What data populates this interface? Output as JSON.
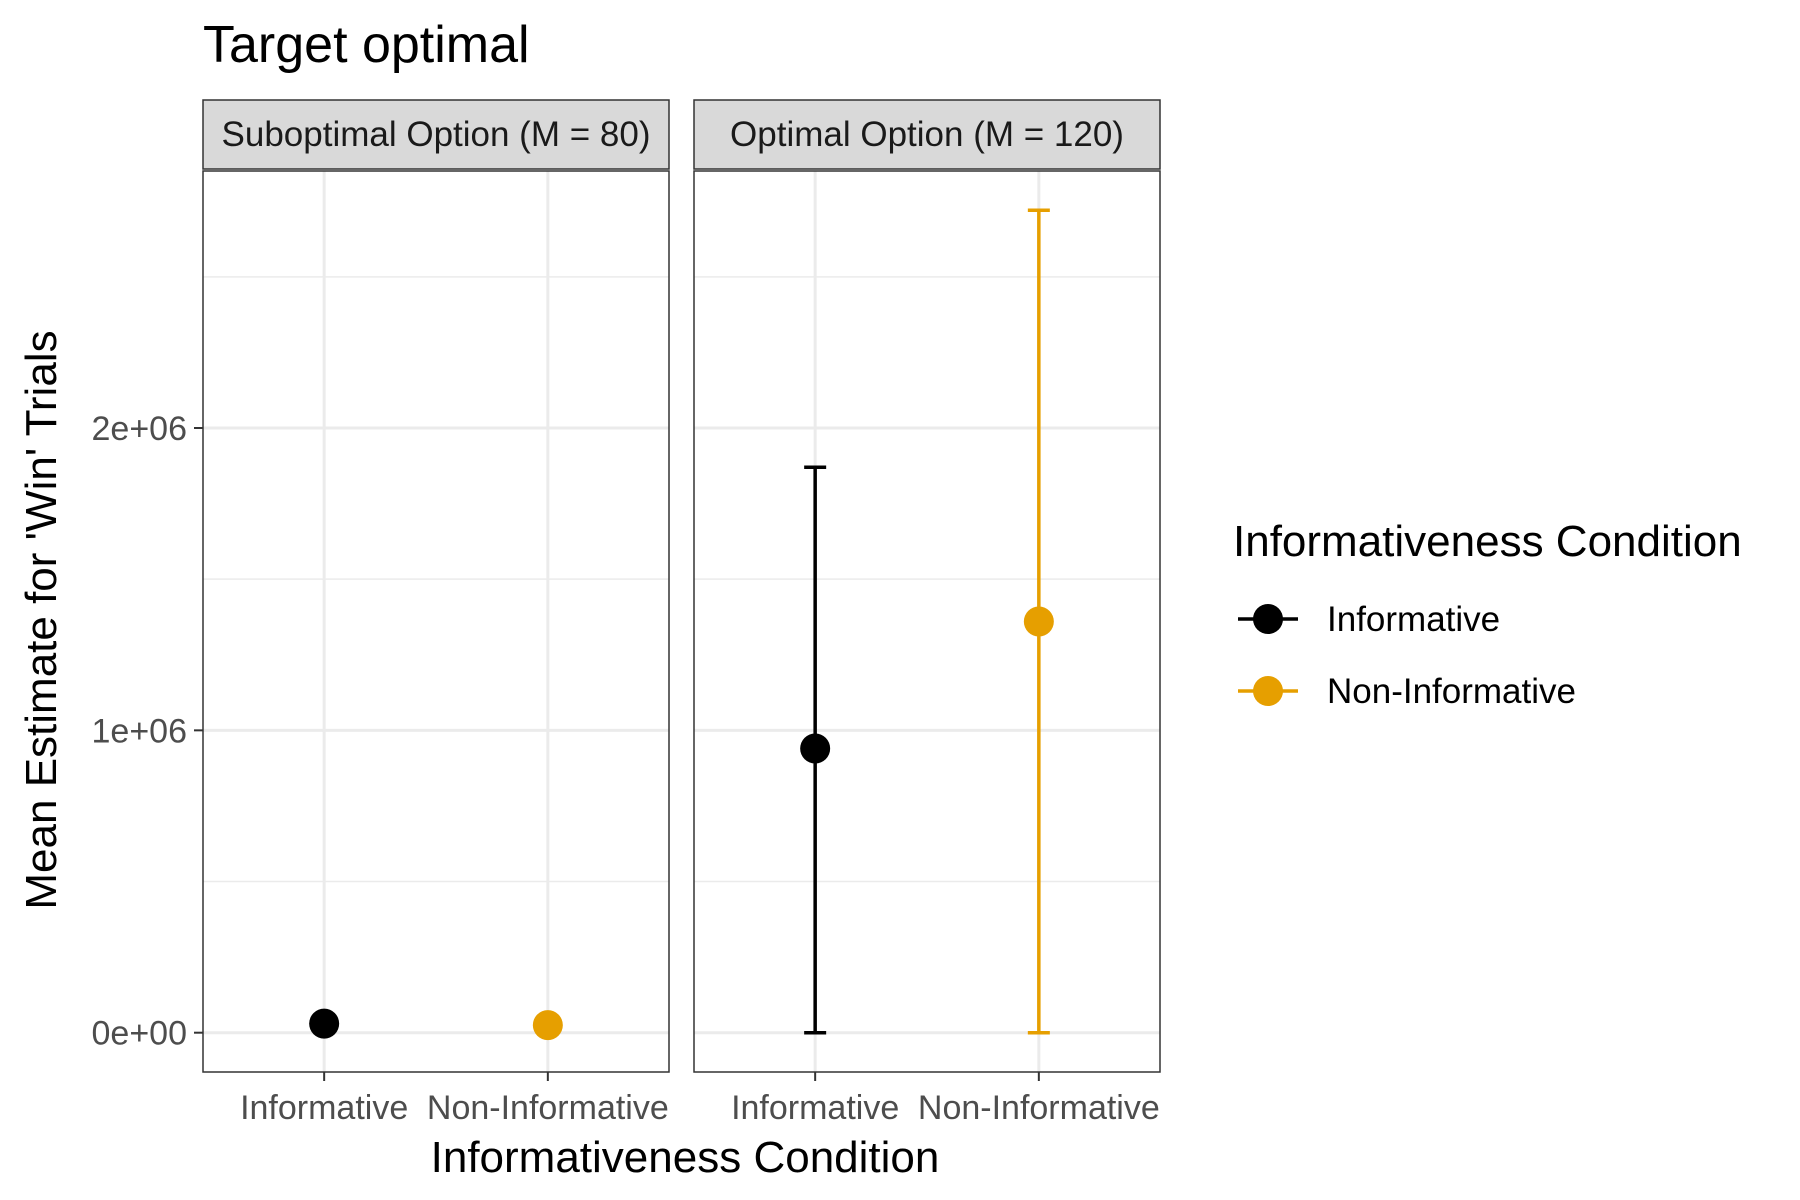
{
  "chart_data": {
    "type": "scatter",
    "title": "Target optimal",
    "xlabel": "Informativeness Condition",
    "ylabel": "Mean Estimate for 'Win' Trials",
    "categories": [
      "Informative",
      "Non-Informative"
    ],
    "y_ticks": [
      0,
      1000000,
      2000000
    ],
    "y_tick_labels": [
      "0e+00",
      "1e+06",
      "2e+06"
    ],
    "ylim": [
      -130000,
      2850000
    ],
    "grid": true,
    "legend": {
      "title": "Informativeness Condition",
      "position": "right",
      "entries": [
        {
          "label": "Informative",
          "color": "#000000"
        },
        {
          "label": "Non-Informative",
          "color": "#E69F00"
        }
      ]
    },
    "panels": [
      {
        "label": "Suboptimal Option (M = 80)",
        "points": [
          {
            "category": "Informative",
            "y": 30000,
            "ymin": null,
            "ymax": null,
            "color": "#000000"
          },
          {
            "category": "Non-Informative",
            "y": 25000,
            "ymin": null,
            "ymax": null,
            "color": "#E69F00"
          }
        ]
      },
      {
        "label": "Optimal Option (M = 120)",
        "points": [
          {
            "category": "Informative",
            "y": 940000,
            "ymin": 0,
            "ymax": 1870000,
            "color": "#000000"
          },
          {
            "category": "Non-Informative",
            "y": 1360000,
            "ymin": 0,
            "ymax": 2720000,
            "color": "#E69F00"
          }
        ]
      }
    ]
  }
}
